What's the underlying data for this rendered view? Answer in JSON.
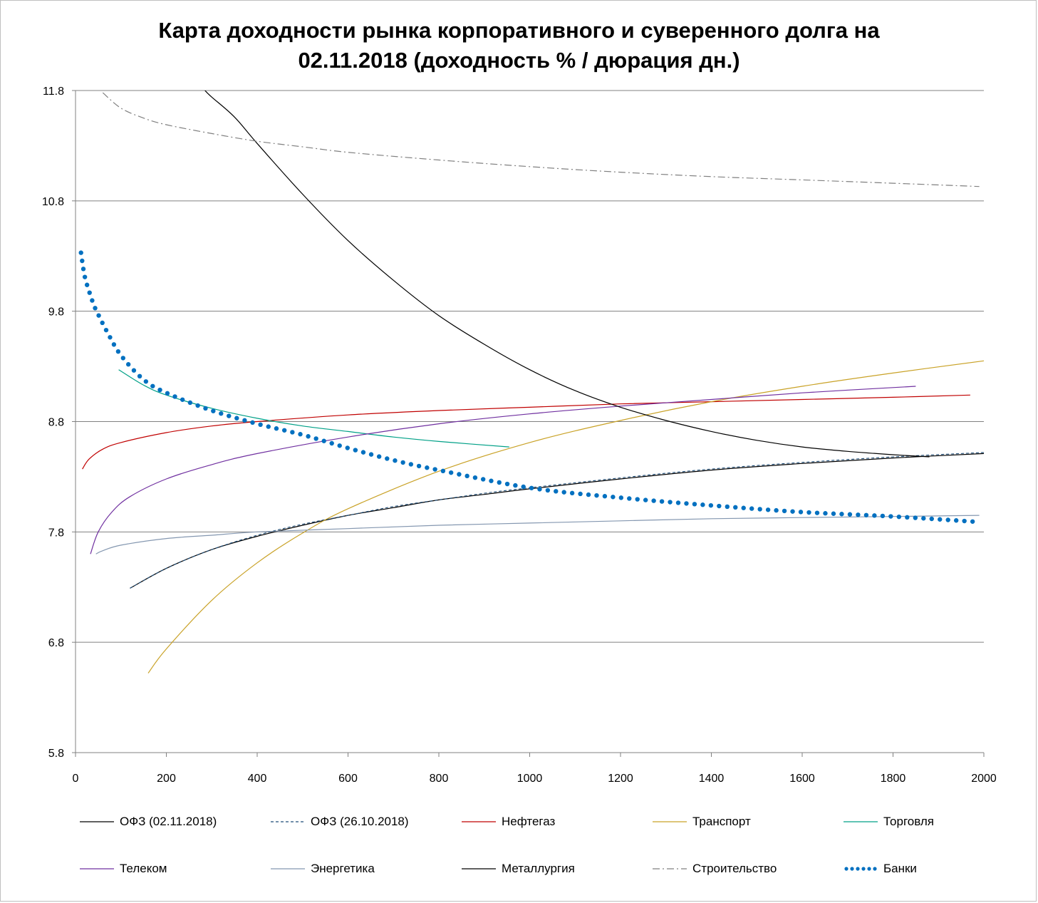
{
  "chart_data": {
    "type": "line",
    "title_lines": [
      "Карта доходности рынка корпоративного и суверенного долга на",
      "02.11.2018 (доходность % / дюрация дн.)"
    ],
    "xlabel": "",
    "ylabel": "",
    "xlim": [
      0,
      2000
    ],
    "ylim": [
      5.8,
      11.8
    ],
    "x_ticks": [
      0,
      200,
      400,
      600,
      800,
      1000,
      1200,
      1400,
      1600,
      1800,
      2000
    ],
    "y_ticks": [
      5.8,
      6.8,
      7.8,
      8.8,
      9.8,
      10.8,
      11.8
    ],
    "y_tick_labels": [
      "5.8",
      "6.8",
      "7.8",
      "8.8",
      "9.8",
      "10.8",
      "11.8"
    ],
    "grid": "horizontal",
    "legend_position": "bottom",
    "series": [
      {
        "name": "ОФЗ (02.11.2018)",
        "color": "#000000",
        "style": "solid",
        "x": [
          120,
          200,
          300,
          400,
          500,
          600,
          700,
          800,
          900,
          1000,
          1200,
          1400,
          1600,
          1800,
          2000
        ],
        "y": [
          7.29,
          7.47,
          7.64,
          7.76,
          7.86,
          7.95,
          8.02,
          8.09,
          8.14,
          8.19,
          8.28,
          8.36,
          8.42,
          8.47,
          8.51
        ]
      },
      {
        "name": "ОФЗ (26.10.2018)",
        "color": "#1f4e79",
        "style": "dash",
        "x": [
          120,
          200,
          300,
          400,
          500,
          600,
          700,
          800,
          900,
          1000,
          1200,
          1400,
          1600,
          1800,
          2000
        ],
        "y": [
          7.29,
          7.47,
          7.64,
          7.77,
          7.87,
          7.95,
          8.03,
          8.09,
          8.15,
          8.2,
          8.29,
          8.37,
          8.43,
          8.48,
          8.52
        ]
      },
      {
        "name": "Нефтегаз",
        "color": "#c00000",
        "style": "solid",
        "x": [
          15,
          30,
          60,
          100,
          200,
          300,
          400,
          600,
          800,
          1000,
          1200,
          1400,
          1600,
          1800,
          1970
        ],
        "y": [
          8.37,
          8.46,
          8.55,
          8.61,
          8.7,
          8.76,
          8.8,
          8.86,
          8.9,
          8.93,
          8.96,
          8.98,
          9.0,
          9.02,
          9.04
        ]
      },
      {
        "name": "Транспорт",
        "color": "#c9a227",
        "style": "solid",
        "x": [
          160,
          200,
          300,
          400,
          500,
          600,
          800,
          1000,
          1200,
          1400,
          1600,
          1800,
          2000
        ],
        "y": [
          6.52,
          6.74,
          7.18,
          7.52,
          7.79,
          8.01,
          8.35,
          8.61,
          8.81,
          8.98,
          9.12,
          9.24,
          9.35
        ]
      },
      {
        "name": "Торговля",
        "color": "#00a087",
        "style": "solid",
        "x": [
          95,
          150,
          200,
          300,
          400,
          500,
          600,
          700,
          800,
          955
        ],
        "y": [
          9.27,
          9.13,
          9.04,
          8.92,
          8.83,
          8.76,
          8.71,
          8.66,
          8.62,
          8.57
        ]
      },
      {
        "name": "Телеком",
        "color": "#7030a0",
        "style": "solid",
        "x": [
          33,
          50,
          80,
          120,
          200,
          300,
          400,
          600,
          800,
          1000,
          1200,
          1400,
          1600,
          1850
        ],
        "y": [
          7.6,
          7.8,
          7.98,
          8.12,
          8.28,
          8.41,
          8.51,
          8.66,
          8.78,
          8.87,
          8.94,
          9.0,
          9.06,
          9.12
        ]
      },
      {
        "name": "Энергетика",
        "color": "#8497b0",
        "style": "solid",
        "x": [
          45,
          60,
          100,
          200,
          300,
          400,
          600,
          800,
          1000,
          1200,
          1400,
          1600,
          1800,
          1990
        ],
        "y": [
          7.6,
          7.63,
          7.68,
          7.74,
          7.77,
          7.8,
          7.83,
          7.86,
          7.88,
          7.9,
          7.92,
          7.93,
          7.94,
          7.95
        ]
      },
      {
        "name": "Металлургия",
        "color": "#000000",
        "style": "solid",
        "x": [
          285,
          300,
          350,
          400,
          500,
          600,
          700,
          800,
          900,
          1000,
          1100,
          1200,
          1300,
          1400,
          1500,
          1600,
          1700,
          1800,
          1880
        ],
        "y": [
          11.8,
          11.74,
          11.56,
          11.32,
          10.86,
          10.44,
          10.08,
          9.76,
          9.5,
          9.27,
          9.08,
          8.93,
          8.81,
          8.71,
          8.63,
          8.57,
          8.53,
          8.5,
          8.48
        ]
      },
      {
        "name": "Строительство",
        "color": "#808080",
        "style": "dashdot",
        "x": [
          60,
          100,
          150,
          200,
          300,
          400,
          500,
          600,
          800,
          1000,
          1200,
          1400,
          1600,
          1800,
          1990
        ],
        "y": [
          11.78,
          11.64,
          11.55,
          11.49,
          11.41,
          11.34,
          11.29,
          11.24,
          11.17,
          11.11,
          11.06,
          11.02,
          10.99,
          10.96,
          10.93
        ]
      },
      {
        "name": "Банки",
        "color": "#0070c0",
        "style": "dot",
        "x": [
          12,
          20,
          30,
          40,
          50,
          70,
          100,
          150,
          200,
          300,
          400,
          500,
          600,
          700,
          800,
          1000,
          1200,
          1400,
          1600,
          1800,
          1990
        ],
        "y": [
          10.33,
          10.12,
          9.98,
          9.86,
          9.77,
          9.61,
          9.4,
          9.18,
          9.06,
          8.9,
          8.78,
          8.68,
          8.56,
          8.45,
          8.36,
          8.2,
          8.11,
          8.04,
          7.98,
          7.94,
          7.89
        ]
      }
    ]
  }
}
